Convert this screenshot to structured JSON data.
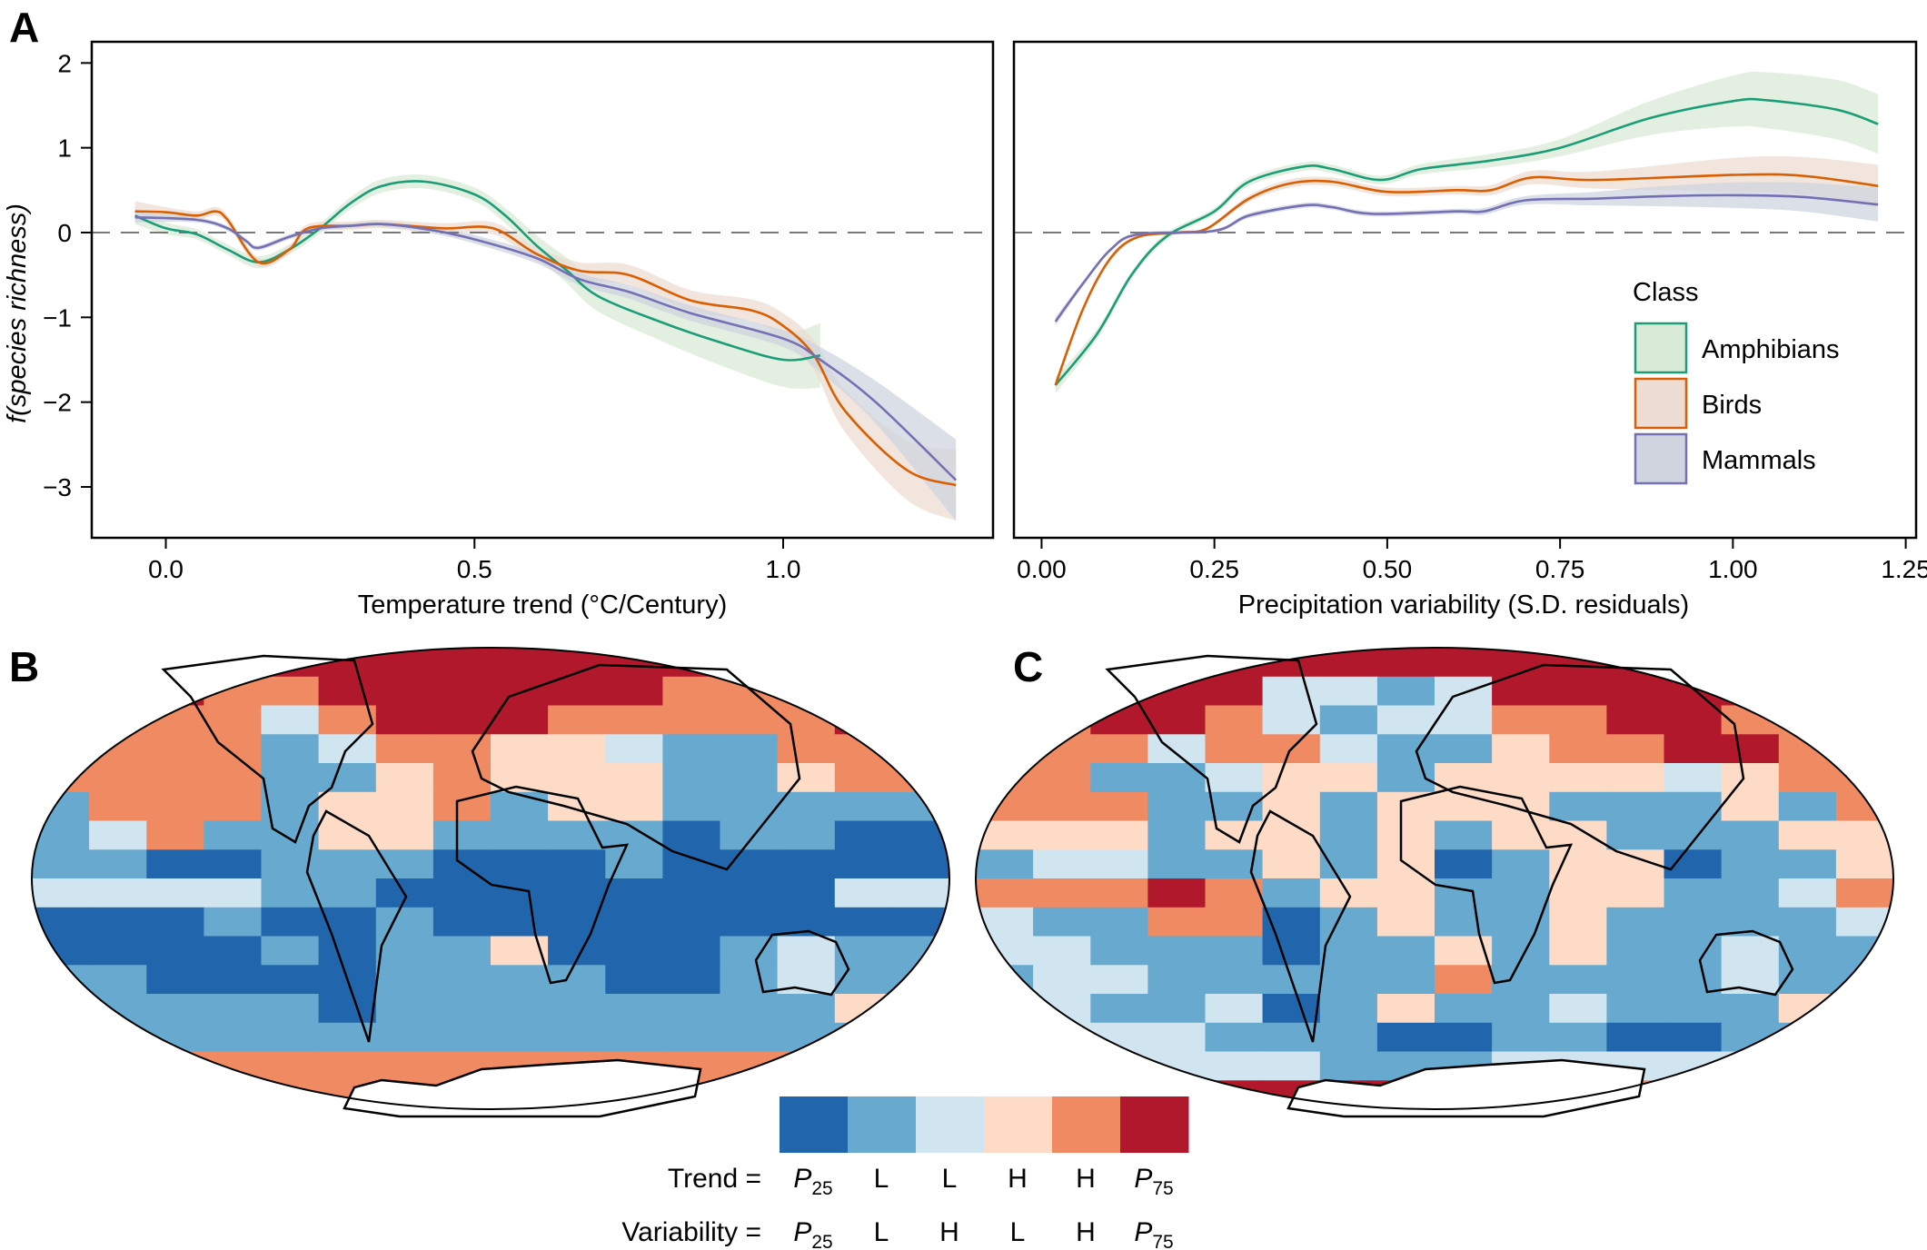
{
  "panel_letters": {
    "a": "A",
    "b": "B",
    "c": "C"
  },
  "colors": {
    "Amphibians": {
      "line": "#1b9e77",
      "fill": "#d9ead6"
    },
    "Birds": {
      "line": "#d95f02",
      "fill": "#ecdcd3"
    },
    "Mammals": {
      "line": "#7570b3",
      "fill": "#cfd4df"
    }
  },
  "chart_data": [
    {
      "type": "line",
      "panel": "A-left",
      "xlabel": "Temperature trend (°C/Century)",
      "ylabel": "f(species richness)",
      "xlim": [
        -0.12,
        1.34
      ],
      "ylim": [
        -3.6,
        2.25
      ],
      "xticks": [
        {
          "v": 0.0,
          "label": "0.0"
        },
        {
          "v": 0.5,
          "label": "0.5"
        },
        {
          "v": 1.0,
          "label": "1.0"
        }
      ],
      "yticks": [
        {
          "v": 2,
          "label": "2"
        },
        {
          "v": 1,
          "label": "1"
        },
        {
          "v": 0,
          "label": "0"
        },
        {
          "v": -1,
          "label": "−1"
        },
        {
          "v": -2,
          "label": "−2"
        },
        {
          "v": -3,
          "label": "−3"
        }
      ],
      "reference_line": 0,
      "series": [
        {
          "name": "Amphibians",
          "x": [
            -0.05,
            0.0,
            0.05,
            0.1,
            0.15,
            0.2,
            0.25,
            0.3,
            0.35,
            0.42,
            0.5,
            0.55,
            0.6,
            0.65,
            0.7,
            0.8,
            0.9,
            1.0,
            1.06
          ],
          "y": [
            0.2,
            0.05,
            -0.02,
            -0.2,
            -0.35,
            -0.2,
            0.05,
            0.35,
            0.55,
            0.6,
            0.45,
            0.2,
            -0.15,
            -0.45,
            -0.75,
            -1.05,
            -1.3,
            -1.5,
            -1.45
          ],
          "band": [
            0.1,
            0.07,
            0.06,
            0.06,
            0.07,
            0.06,
            0.06,
            0.07,
            0.08,
            0.08,
            0.08,
            0.09,
            0.12,
            0.15,
            0.18,
            0.22,
            0.27,
            0.32,
            0.38
          ]
        },
        {
          "name": "Birds",
          "x": [
            -0.05,
            0.0,
            0.05,
            0.08,
            0.1,
            0.15,
            0.2,
            0.23,
            0.3,
            0.35,
            0.45,
            0.53,
            0.6,
            0.67,
            0.75,
            0.85,
            0.95,
            1.0,
            1.05,
            1.1,
            1.2,
            1.28
          ],
          "y": [
            0.25,
            0.24,
            0.2,
            0.25,
            0.15,
            -0.35,
            -0.2,
            0.05,
            0.08,
            0.1,
            0.05,
            0.05,
            -0.25,
            -0.45,
            -0.5,
            -0.8,
            -0.92,
            -1.1,
            -1.45,
            -2.1,
            -2.8,
            -2.98
          ],
          "band": [
            0.12,
            0.06,
            0.05,
            0.05,
            0.05,
            0.05,
            0.05,
            0.05,
            0.05,
            0.05,
            0.06,
            0.07,
            0.08,
            0.1,
            0.12,
            0.12,
            0.13,
            0.15,
            0.18,
            0.25,
            0.35,
            0.42
          ]
        },
        {
          "name": "Mammals",
          "x": [
            -0.05,
            0.05,
            0.1,
            0.13,
            0.15,
            0.2,
            0.25,
            0.3,
            0.35,
            0.43,
            0.5,
            0.6,
            0.67,
            0.75,
            0.85,
            1.0,
            1.06,
            1.15,
            1.28
          ],
          "y": [
            0.18,
            0.15,
            0.05,
            -0.1,
            -0.18,
            -0.05,
            0.05,
            0.08,
            0.1,
            0.03,
            -0.08,
            -0.3,
            -0.55,
            -0.7,
            -0.95,
            -1.25,
            -1.5,
            -2.0,
            -2.92
          ],
          "band": [
            0.06,
            0.03,
            0.03,
            0.03,
            0.03,
            0.03,
            0.03,
            0.03,
            0.03,
            0.04,
            0.05,
            0.06,
            0.07,
            0.08,
            0.09,
            0.1,
            0.15,
            0.25,
            0.48
          ]
        }
      ]
    },
    {
      "type": "line",
      "panel": "A-right",
      "xlabel": "Precipitation variability (S.D. residuals)",
      "xlim": [
        -0.04,
        1.265
      ],
      "ylim": [
        -3.6,
        2.25
      ],
      "xticks": [
        {
          "v": 0.0,
          "label": "0.00"
        },
        {
          "v": 0.25,
          "label": "0.25"
        },
        {
          "v": 0.5,
          "label": "0.50"
        },
        {
          "v": 0.75,
          "label": "0.75"
        },
        {
          "v": 1.0,
          "label": "1.00"
        },
        {
          "v": 1.25,
          "label": "1.25"
        }
      ],
      "reference_line": 0,
      "legend": {
        "title": "Class",
        "position": "right",
        "entries": [
          "Amphibians",
          "Birds",
          "Mammals"
        ]
      },
      "series": [
        {
          "name": "Amphibians",
          "x": [
            0.02,
            0.08,
            0.13,
            0.18,
            0.25,
            0.3,
            0.38,
            0.42,
            0.49,
            0.55,
            0.65,
            0.75,
            0.88,
            1.0,
            1.05,
            1.15,
            1.21
          ],
          "y": [
            -1.8,
            -1.2,
            -0.5,
            -0.05,
            0.25,
            0.6,
            0.78,
            0.75,
            0.62,
            0.75,
            0.85,
            1.0,
            1.35,
            1.55,
            1.56,
            1.45,
            1.28
          ],
          "band": [
            0.1,
            0.06,
            0.04,
            0.04,
            0.04,
            0.05,
            0.05,
            0.05,
            0.05,
            0.06,
            0.08,
            0.1,
            0.2,
            0.3,
            0.33,
            0.35,
            0.35
          ]
        },
        {
          "name": "Birds",
          "x": [
            0.02,
            0.06,
            0.1,
            0.14,
            0.2,
            0.24,
            0.3,
            0.36,
            0.42,
            0.5,
            0.6,
            0.65,
            0.71,
            0.8,
            1.0,
            1.1,
            1.21
          ],
          "y": [
            -1.8,
            -0.9,
            -0.3,
            -0.05,
            0.0,
            0.05,
            0.4,
            0.58,
            0.6,
            0.48,
            0.5,
            0.5,
            0.65,
            0.62,
            0.68,
            0.67,
            0.55
          ],
          "band": [
            0.05,
            0.03,
            0.03,
            0.02,
            0.02,
            0.02,
            0.04,
            0.05,
            0.05,
            0.05,
            0.05,
            0.06,
            0.08,
            0.1,
            0.2,
            0.22,
            0.25
          ]
        },
        {
          "name": "Mammals",
          "x": [
            0.02,
            0.06,
            0.1,
            0.14,
            0.25,
            0.3,
            0.38,
            0.42,
            0.48,
            0.6,
            0.64,
            0.7,
            0.8,
            0.9,
            1.0,
            1.1,
            1.21
          ],
          "y": [
            -1.05,
            -0.6,
            -0.2,
            -0.02,
            0.02,
            0.2,
            0.32,
            0.3,
            0.22,
            0.25,
            0.25,
            0.38,
            0.4,
            0.43,
            0.44,
            0.42,
            0.33
          ],
          "band": [
            0.05,
            0.03,
            0.02,
            0.02,
            0.02,
            0.03,
            0.03,
            0.03,
            0.03,
            0.03,
            0.04,
            0.05,
            0.08,
            0.12,
            0.15,
            0.17,
            0.2
          ]
        }
      ]
    }
  ],
  "map_legend": {
    "colors": [
      "#2166ac",
      "#67a9cf",
      "#d1e5f0",
      "#fddbc7",
      "#ef8a62",
      "#b2182b"
    ],
    "trend_label": "Trend =",
    "variability_label": "Variability =",
    "trend": [
      {
        "m": "P",
        "s": "25"
      },
      {
        "m": "L",
        "s": ""
      },
      {
        "m": "L",
        "s": ""
      },
      {
        "m": "H",
        "s": ""
      },
      {
        "m": "H",
        "s": ""
      },
      {
        "m": "P",
        "s": "75"
      }
    ],
    "variability": [
      {
        "m": "P",
        "s": "25"
      },
      {
        "m": "L",
        "s": ""
      },
      {
        "m": "H",
        "s": ""
      },
      {
        "m": "L",
        "s": ""
      },
      {
        "m": "H",
        "s": ""
      },
      {
        "m": "P",
        "s": "75"
      }
    ]
  },
  "maps": {
    "B": [
      [
        5,
        5,
        5,
        5,
        5,
        5,
        5,
        5,
        5,
        5,
        5,
        5,
        5,
        5,
        5,
        5
      ],
      [
        5,
        5,
        5,
        4,
        4,
        5,
        5,
        5,
        5,
        5,
        5,
        4,
        4,
        4,
        5,
        5
      ],
      [
        5,
        4,
        4,
        4,
        2,
        4,
        5,
        5,
        5,
        4,
        4,
        4,
        4,
        4,
        5,
        5
      ],
      [
        4,
        4,
        4,
        4,
        1,
        2,
        4,
        4,
        3,
        3,
        2,
        1,
        1,
        4,
        4,
        4
      ],
      [
        4,
        4,
        4,
        4,
        1,
        1,
        3,
        4,
        3,
        3,
        3,
        1,
        1,
        3,
        4,
        4
      ],
      [
        1,
        4,
        4,
        4,
        1,
        3,
        3,
        4,
        1,
        3,
        3,
        1,
        1,
        1,
        1,
        1
      ],
      [
        1,
        2,
        4,
        1,
        1,
        3,
        3,
        1,
        1,
        1,
        1,
        0,
        1,
        1,
        0,
        0
      ],
      [
        1,
        1,
        0,
        0,
        1,
        1,
        1,
        0,
        0,
        0,
        1,
        0,
        0,
        0,
        0,
        0
      ],
      [
        2,
        2,
        2,
        2,
        1,
        1,
        0,
        0,
        0,
        0,
        0,
        0,
        0,
        0,
        2,
        2
      ],
      [
        0,
        0,
        0,
        1,
        0,
        0,
        1,
        0,
        0,
        0,
        0,
        0,
        0,
        0,
        0,
        0
      ],
      [
        0,
        0,
        0,
        0,
        1,
        0,
        1,
        1,
        3,
        0,
        0,
        0,
        1,
        2,
        1,
        1
      ],
      [
        1,
        1,
        0,
        0,
        0,
        0,
        1,
        1,
        1,
        1,
        0,
        0,
        1,
        2,
        1,
        1
      ],
      [
        1,
        1,
        1,
        1,
        1,
        0,
        1,
        1,
        1,
        1,
        1,
        1,
        1,
        1,
        3,
        1
      ],
      [
        1,
        1,
        1,
        1,
        1,
        1,
        1,
        1,
        1,
        1,
        1,
        1,
        1,
        1,
        1,
        1
      ],
      [
        4,
        4,
        4,
        4,
        4,
        4,
        4,
        4,
        4,
        4,
        4,
        4,
        4,
        4,
        4,
        4
      ],
      [
        5,
        5,
        4,
        4,
        4,
        4,
        4,
        4,
        4,
        4,
        4,
        4,
        4,
        4,
        5,
        5
      ]
    ],
    "C": [
      [
        5,
        5,
        5,
        5,
        5,
        5,
        5,
        5,
        5,
        5,
        5,
        5,
        5,
        5,
        5,
        5
      ],
      [
        5,
        5,
        5,
        5,
        5,
        2,
        2,
        1,
        2,
        5,
        5,
        5,
        5,
        5,
        5,
        5
      ],
      [
        4,
        4,
        5,
        5,
        4,
        2,
        1,
        2,
        2,
        4,
        4,
        5,
        5,
        4,
        4,
        4
      ],
      [
        4,
        4,
        4,
        2,
        4,
        4,
        2,
        1,
        1,
        3,
        4,
        4,
        5,
        5,
        4,
        4
      ],
      [
        4,
        4,
        1,
        1,
        2,
        3,
        3,
        1,
        3,
        3,
        3,
        3,
        2,
        3,
        4,
        4
      ],
      [
        4,
        4,
        4,
        1,
        1,
        3,
        1,
        3,
        3,
        3,
        1,
        1,
        1,
        3,
        1,
        4
      ],
      [
        3,
        3,
        3,
        1,
        3,
        3,
        1,
        3,
        1,
        3,
        3,
        1,
        1,
        1,
        3,
        3
      ],
      [
        1,
        2,
        2,
        1,
        1,
        3,
        1,
        3,
        0,
        1,
        3,
        3,
        0,
        1,
        1,
        3
      ],
      [
        4,
        4,
        4,
        5,
        4,
        1,
        3,
        3,
        1,
        1,
        3,
        3,
        1,
        1,
        2,
        4
      ],
      [
        2,
        1,
        1,
        4,
        4,
        0,
        1,
        3,
        1,
        1,
        3,
        1,
        1,
        1,
        1,
        2
      ],
      [
        2,
        2,
        1,
        1,
        1,
        0,
        1,
        1,
        3,
        1,
        3,
        1,
        1,
        2,
        1,
        1
      ],
      [
        1,
        2,
        2,
        1,
        1,
        1,
        1,
        1,
        4,
        1,
        1,
        1,
        1,
        2,
        1,
        1
      ],
      [
        2,
        2,
        1,
        1,
        2,
        0,
        1,
        3,
        1,
        1,
        2,
        1,
        1,
        1,
        3,
        3
      ],
      [
        2,
        2,
        2,
        2,
        1,
        1,
        1,
        0,
        0,
        1,
        1,
        0,
        0,
        1,
        1,
        1
      ],
      [
        2,
        2,
        2,
        2,
        2,
        2,
        1,
        1,
        1,
        2,
        2,
        2,
        2,
        2,
        2,
        2
      ],
      [
        5,
        5,
        5,
        4,
        5,
        5,
        5,
        5,
        5,
        4,
        4,
        4,
        5,
        5,
        5,
        5
      ]
    ]
  }
}
